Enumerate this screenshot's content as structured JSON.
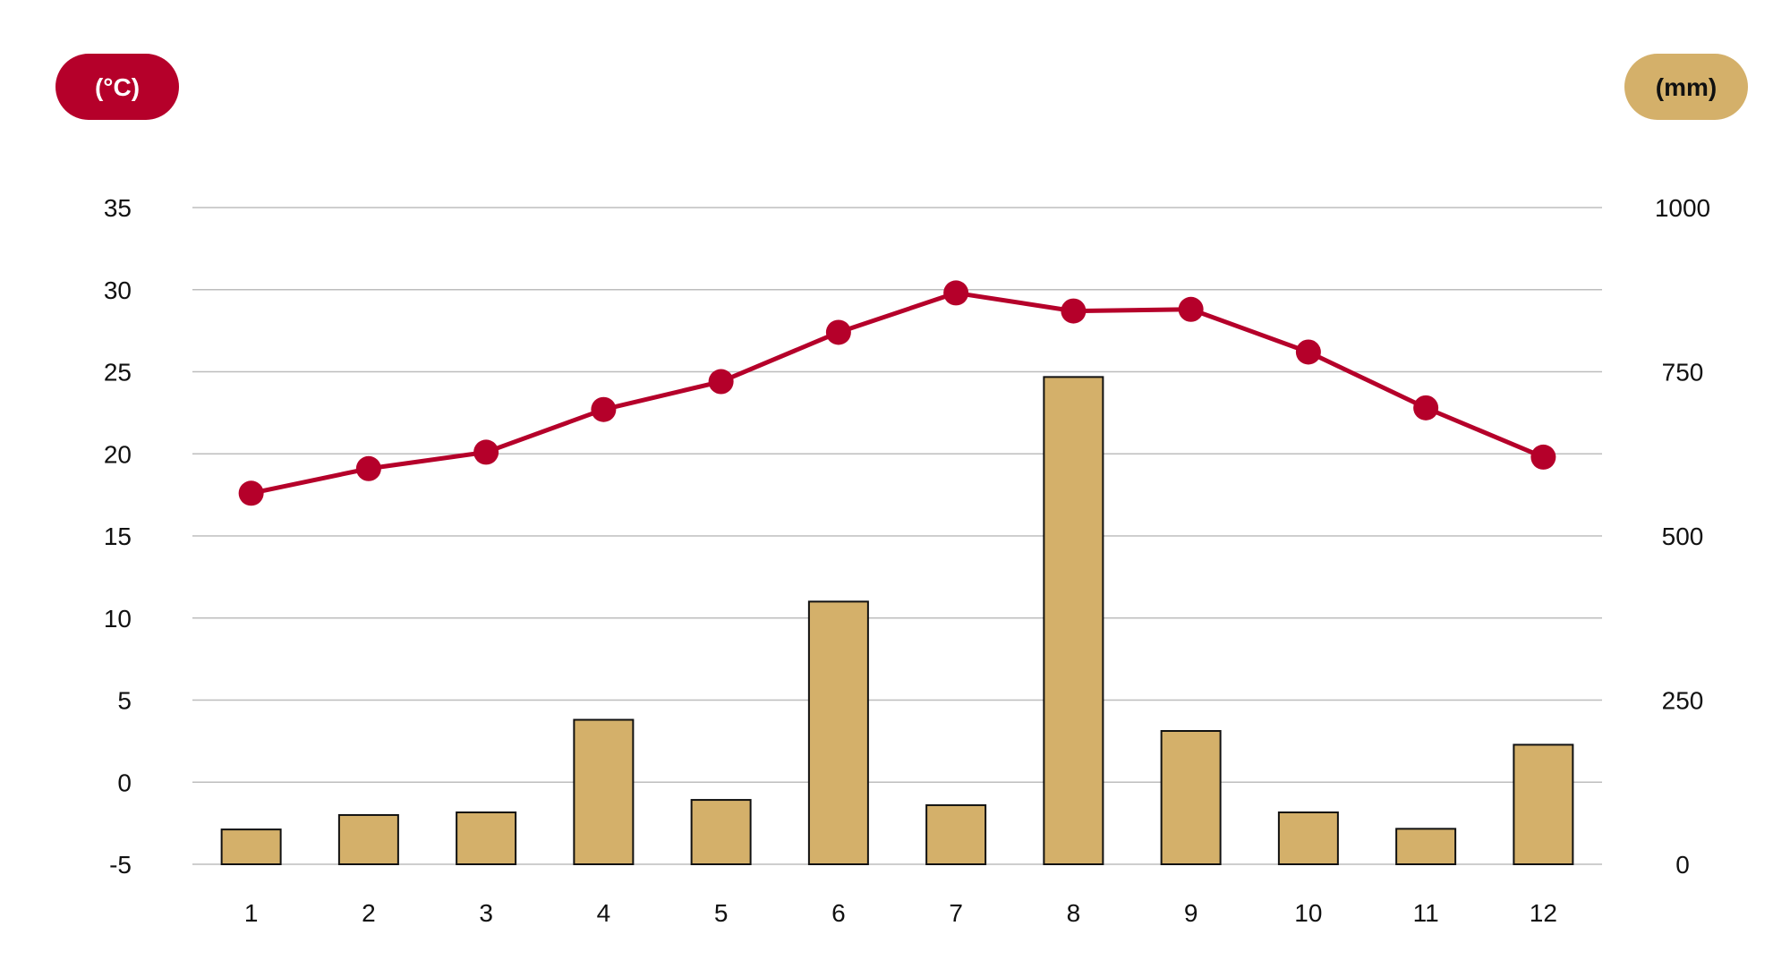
{
  "chart_data": {
    "type": "bar",
    "title": "",
    "categories": [
      "1",
      "2",
      "3",
      "4",
      "5",
      "6",
      "7",
      "8",
      "9",
      "10",
      "11",
      "12"
    ],
    "y_left": {
      "label": "(°C)",
      "range": [
        -5,
        35
      ],
      "ticks": [
        "35",
        "30",
        "25",
        "20",
        "15",
        "10",
        "5",
        "0",
        "-5"
      ]
    },
    "y_right": {
      "label": "(mm)",
      "range": [
        0,
        1000
      ],
      "ticks": [
        "1000",
        "750",
        "500",
        "250",
        "0"
      ]
    },
    "grid": true,
    "legend": "none",
    "series": [
      {
        "kind": "bar",
        "axis": "right",
        "color": "#d4b06a",
        "values": [
          53,
          75,
          79,
          220,
          98,
          400,
          90,
          742,
          203,
          79,
          54,
          182
        ]
      },
      {
        "kind": "line",
        "axis": "left",
        "color": "#b5002a",
        "values": [
          17.6,
          19.1,
          20.1,
          22.7,
          24.4,
          27.4,
          29.8,
          28.7,
          28.8,
          26.2,
          22.8,
          19.8
        ]
      }
    ]
  }
}
